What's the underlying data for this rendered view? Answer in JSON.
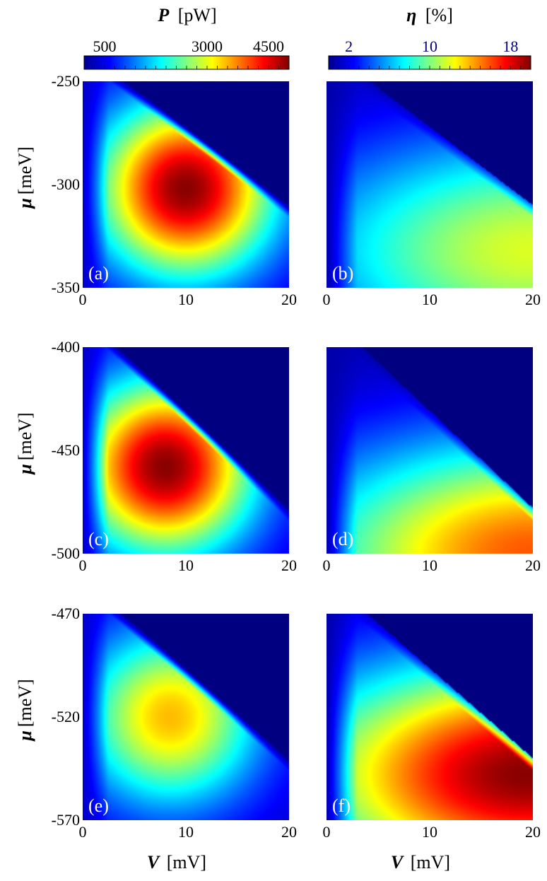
{
  "column_titles": [
    {
      "symbol": "P",
      "unit": "[pW]"
    },
    {
      "symbol": "η",
      "unit": "[%]"
    }
  ],
  "colorbars": [
    {
      "ticks": [
        "500",
        "3000",
        "4500"
      ],
      "tick_values": [
        500,
        3000,
        4500
      ],
      "range": [
        0,
        5000
      ],
      "tick_color": "#000000"
    },
    {
      "ticks": [
        "2",
        "10",
        "18"
      ],
      "tick_values": [
        2,
        10,
        18
      ],
      "range": [
        0,
        20
      ],
      "tick_color": "#00007a"
    }
  ],
  "colormap": "jet",
  "ylabel": {
    "symbol": "μ",
    "unit": "[meV]"
  },
  "xlabel": {
    "symbol": "V",
    "unit": "[mV]"
  },
  "chart_data": [
    {
      "type": "heatmap",
      "panel_label": "(a)",
      "quantity": "P",
      "xlim": [
        0,
        20
      ],
      "ylim": [
        -350,
        -250
      ],
      "x_ticks": [
        "0",
        "10",
        "20"
      ],
      "y_ticks": [
        "-250",
        "-300",
        "-350"
      ],
      "peak": {
        "x": 10,
        "y": -302,
        "value": 4600
      },
      "boundary": {
        "x0": 0.5,
        "y0": -236,
        "x1": 20,
        "y1": -310
      }
    },
    {
      "type": "heatmap",
      "panel_label": "(b)",
      "quantity": "η",
      "xlim": [
        0,
        20
      ],
      "ylim": [
        -350,
        -250
      ],
      "x_ticks": [
        "0",
        "10",
        "20"
      ],
      "y_ticks": [],
      "peak": {
        "x": 20,
        "y": -332,
        "value": 11
      },
      "boundary": {
        "x0": 0.5,
        "y0": -236,
        "x1": 20,
        "y1": -310
      }
    },
    {
      "type": "heatmap",
      "panel_label": "(c)",
      "quantity": "P",
      "xlim": [
        0,
        20
      ],
      "ylim": [
        -500,
        -400
      ],
      "x_ticks": [
        "0",
        "10",
        "20"
      ],
      "y_ticks": [
        "-400",
        "-450",
        "-500"
      ],
      "peak": {
        "x": 8,
        "y": -458,
        "value": 4600
      },
      "boundary": {
        "x0": 0.5,
        "y0": -386,
        "x1": 20,
        "y1": -478
      }
    },
    {
      "type": "heatmap",
      "panel_label": "(d)",
      "quantity": "η",
      "xlim": [
        0,
        20
      ],
      "ylim": [
        -500,
        -400
      ],
      "x_ticks": [
        "0",
        "10",
        "20"
      ],
      "y_ticks": [],
      "peak": {
        "x": 20,
        "y": -500,
        "value": 15
      },
      "boundary": {
        "x0": 0.5,
        "y0": -386,
        "x1": 20,
        "y1": -478
      }
    },
    {
      "type": "heatmap",
      "panel_label": "(e)",
      "quantity": "P",
      "xlim": [
        0,
        20
      ],
      "ylim": [
        -570,
        -470
      ],
      "x_ticks": [
        "0",
        "10",
        "20"
      ],
      "y_ticks": [
        "-470",
        "-520",
        "-570"
      ],
      "peak": {
        "x": 8.5,
        "y": -520,
        "value": 3100
      },
      "boundary": {
        "x0": 0.5,
        "y0": -455,
        "x1": 20,
        "y1": -540
      }
    },
    {
      "type": "heatmap",
      "panel_label": "(f)",
      "quantity": "η",
      "xlim": [
        0,
        20
      ],
      "ylim": [
        -570,
        -470
      ],
      "x_ticks": [
        "0",
        "10",
        "20"
      ],
      "y_ticks": [],
      "peak": {
        "x": 19.5,
        "y": -548,
        "value": 19
      },
      "boundary": {
        "x0": 0.5,
        "y0": -455,
        "x1": 20,
        "y1": -540
      }
    }
  ]
}
